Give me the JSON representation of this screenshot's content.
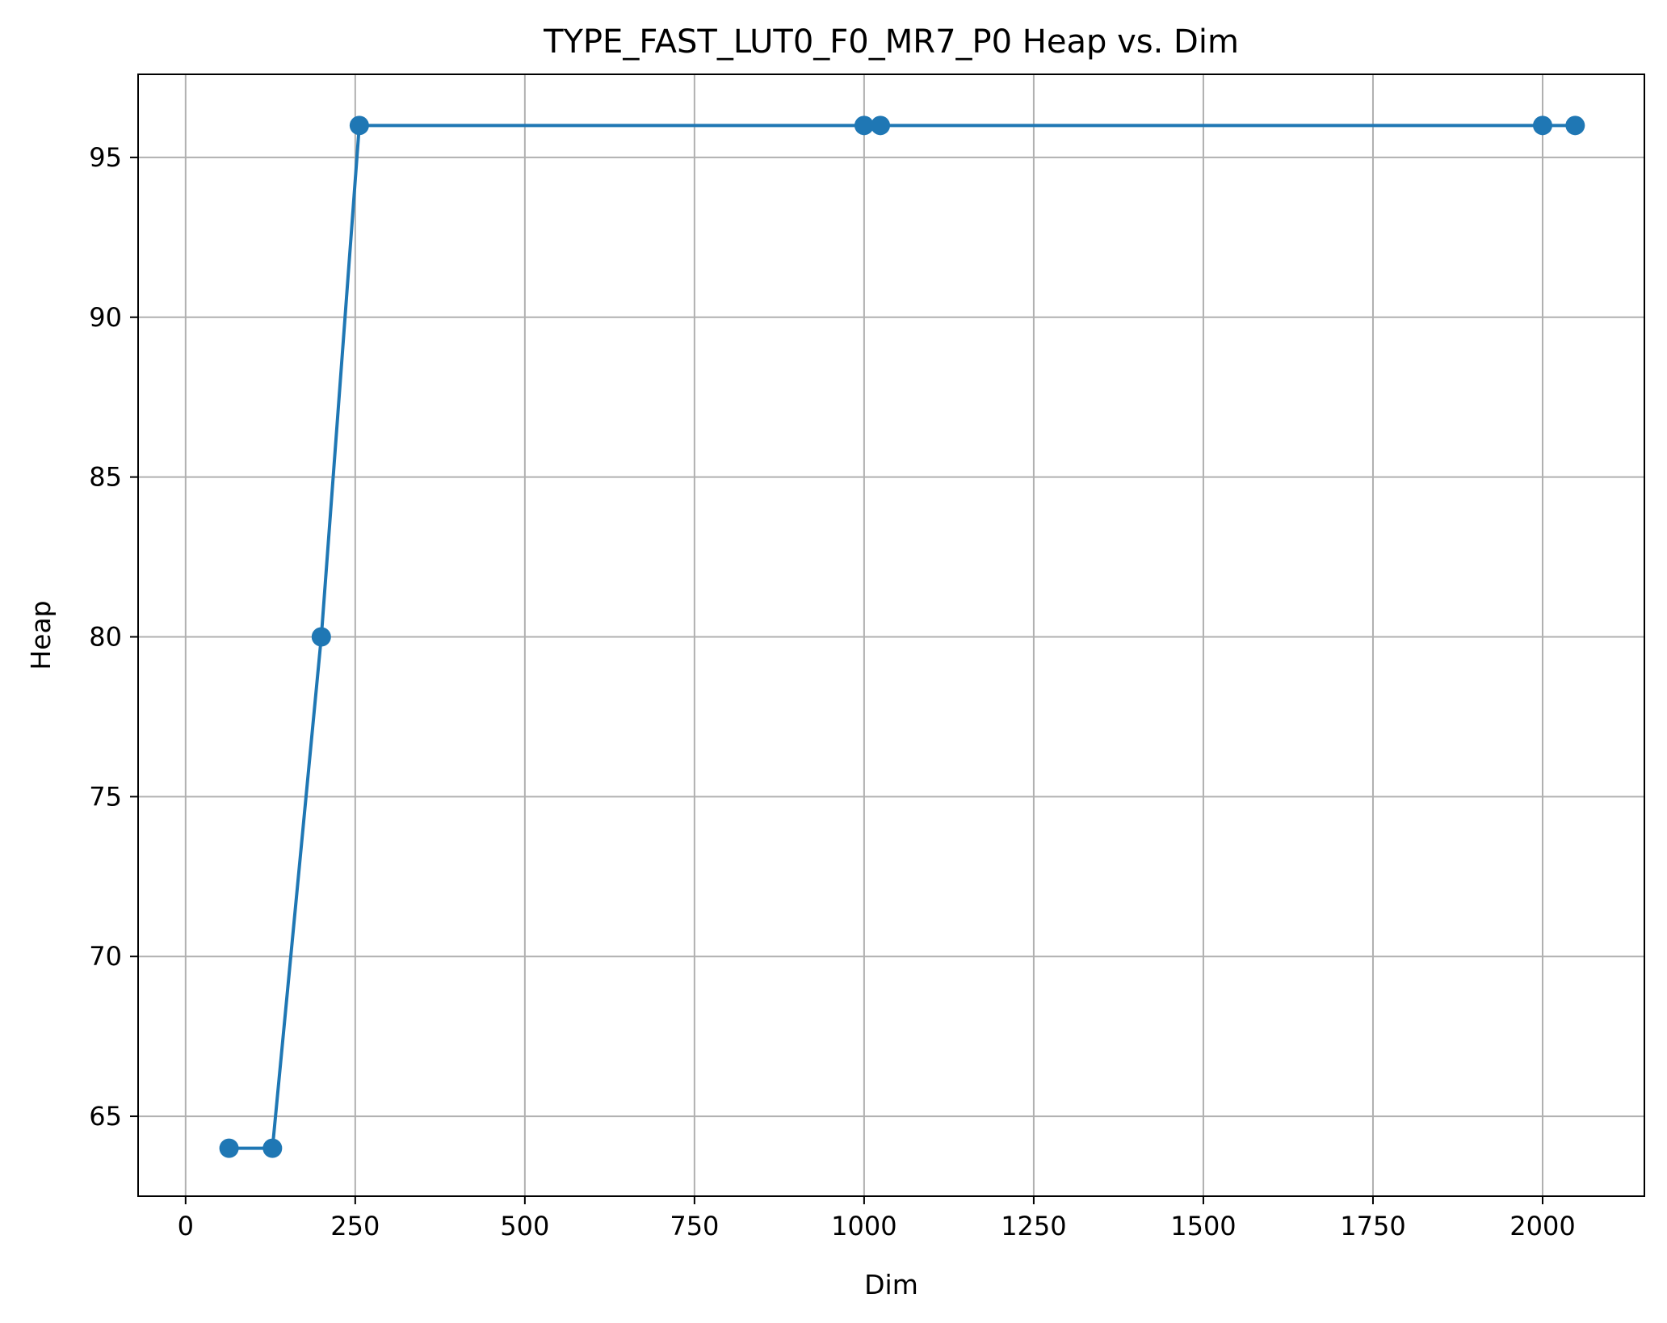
{
  "chart_data": {
    "type": "line",
    "title": "TYPE_FAST_LUT0_F0_MR7_P0 Heap vs. Dim",
    "xlabel": "Dim",
    "ylabel": "Heap",
    "xlim": [
      -70,
      2150
    ],
    "ylim": [
      62.5,
      97.6
    ],
    "xticks": [
      0,
      250,
      500,
      750,
      1000,
      1250,
      1500,
      1750,
      2000
    ],
    "yticks": [
      65,
      70,
      75,
      80,
      85,
      90,
      95
    ],
    "grid": true,
    "series": [
      {
        "color": "#1f77b4",
        "marker": "circle",
        "x": [
          64,
          128,
          200,
          256,
          1000,
          1024,
          2000,
          2048
        ],
        "y": [
          64,
          64,
          80,
          96,
          96,
          96,
          96,
          96
        ]
      }
    ]
  }
}
